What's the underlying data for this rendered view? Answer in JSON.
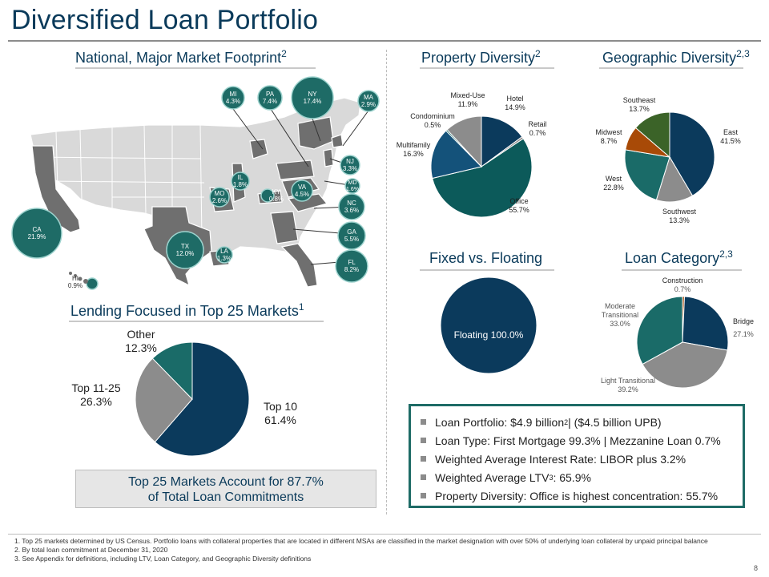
{
  "page": {
    "title": "Diversified Loan Portfolio",
    "page_number": "8",
    "colors": {
      "navy": "#0b3a5c",
      "teal": "#1a6b68",
      "gray": "#8c8c8c",
      "orange": "#a84a07",
      "green": "#3b6328",
      "map_base": "#d9d9d9",
      "map_dark": "#6f6f6f"
    }
  },
  "sections": {
    "national_footprint": {
      "title": "National, Major Market Footprint",
      "sup": "2"
    },
    "property_diversity": {
      "title": "Property Diversity",
      "sup": "2"
    },
    "geographic_diversity": {
      "title": "Geographic Diversity",
      "sup": "2,3"
    },
    "fixed_floating": {
      "title": "Fixed vs. Floating"
    },
    "loan_category": {
      "title": "Loan Category",
      "sup": "2,3"
    },
    "top25": {
      "title": "Lending Focused in Top 25 Markets",
      "sup": "1"
    }
  },
  "map_states": [
    {
      "code": "MI",
      "pct": "4.3%"
    },
    {
      "code": "PA",
      "pct": "7.4%"
    },
    {
      "code": "NY",
      "pct": "17.4%"
    },
    {
      "code": "MA",
      "pct": "2.9%"
    },
    {
      "code": "NJ",
      "pct": "3.3%"
    },
    {
      "code": "MD",
      "pct": "1.6%"
    },
    {
      "code": "IL",
      "pct": "1.8%"
    },
    {
      "code": "MO",
      "pct": "2.6%"
    },
    {
      "code": "KY",
      "pct": "0.8%"
    },
    {
      "code": "VA",
      "pct": "4.5%"
    },
    {
      "code": "NC",
      "pct": "3.6%"
    },
    {
      "code": "GA",
      "pct": "5.5%"
    },
    {
      "code": "FL",
      "pct": "8.2%"
    },
    {
      "code": "LA",
      "pct": "1.3%"
    },
    {
      "code": "TX",
      "pct": "12.0%"
    },
    {
      "code": "CA",
      "pct": "21.9%"
    },
    {
      "code": "HI",
      "pct": "0.9%"
    }
  ],
  "chart_data": [
    {
      "type": "pie",
      "title": "Property Diversity",
      "categories": [
        "Hotel",
        "Retail",
        "Office",
        "Multifamily",
        "Condominium",
        "Mixed-Use"
      ],
      "values": [
        14.9,
        0.7,
        55.7,
        16.3,
        0.5,
        11.9
      ],
      "labels": [
        "14.9%",
        "0.7%",
        "55.7%",
        "16.3%",
        "0.5%",
        "11.9%"
      ],
      "colors": [
        "#0b3a5c",
        "#8c8c8c",
        "#0c5a5a",
        "#14527a",
        "#1f6f6a",
        "#8c8c8c"
      ]
    },
    {
      "type": "pie",
      "title": "Geographic Diversity",
      "categories": [
        "East",
        "Southwest",
        "West",
        "Midwest",
        "Southeast"
      ],
      "values": [
        41.5,
        13.3,
        22.8,
        8.7,
        13.7
      ],
      "labels": [
        "41.5%",
        "13.3%",
        "22.8%",
        "8.7%",
        "13.7%"
      ],
      "colors": [
        "#0b3a5c",
        "#8c8c8c",
        "#1a6b68",
        "#a84a07",
        "#3b6328"
      ]
    },
    {
      "type": "pie",
      "title": "Fixed vs. Floating",
      "categories": [
        "Floating"
      ],
      "values": [
        100.0
      ],
      "labels": [
        "Floating 100.0%"
      ],
      "colors": [
        "#0b3a5c"
      ]
    },
    {
      "type": "pie",
      "title": "Loan Category",
      "categories": [
        "Construction",
        "Bridge",
        "Light Transitional",
        "Moderate Transitional"
      ],
      "values": [
        0.7,
        27.1,
        39.2,
        33.0
      ],
      "labels": [
        "0.7%",
        "27.1%",
        "39.2%",
        "33.0%"
      ],
      "colors": [
        "#a84a07",
        "#0b3a5c",
        "#8c8c8c",
        "#1a6b68"
      ]
    },
    {
      "type": "pie",
      "title": "Lending Focused in Top 25 Markets",
      "categories": [
        "Top 10",
        "Top 11-25",
        "Other"
      ],
      "values": [
        61.4,
        26.3,
        12.3
      ],
      "labels": [
        "61.4%",
        "26.3%",
        "12.3%"
      ],
      "colors": [
        "#0b3a5c",
        "#8c8c8c",
        "#1a6b68"
      ]
    }
  ],
  "summary": {
    "line1": "Top 25 Markets Account for 87.7%",
    "line2": "of Total Loan Commitments"
  },
  "bullets": [
    {
      "pre": "Loan Portfolio: $4.9 billion",
      "sup": "2",
      "post": " | ($4.5 billion UPB)"
    },
    {
      "pre": "Loan Type: First Mortgage 99.3% | Mezzanine Loan 0.7%",
      "sup": "",
      "post": ""
    },
    {
      "pre": "Weighted Average Interest Rate: LIBOR plus 3.2%",
      "sup": "",
      "post": ""
    },
    {
      "pre": "Weighted Average LTV",
      "sup": "3",
      "post": ": 65.9%"
    },
    {
      "pre": "Property Diversity: Office is highest concentration: 55.7%",
      "sup": "",
      "post": ""
    }
  ],
  "footnotes": [
    "1. Top 25 markets determined by US Census. Portfolio loans with collateral properties that are located in different MSAs are classified in the market designation with over 50% of underlying loan collateral by unpaid principal balance",
    "2. By total loan commitment at December 31, 2020",
    "3. See Appendix for definitions, including LTV, Loan Category, and Geographic Diversity definitions"
  ]
}
